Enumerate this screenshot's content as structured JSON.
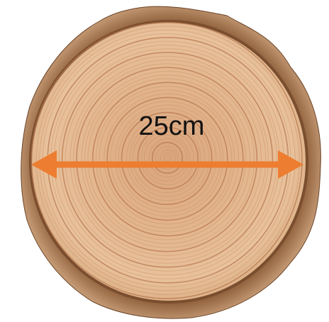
{
  "label": "25cm"
}
